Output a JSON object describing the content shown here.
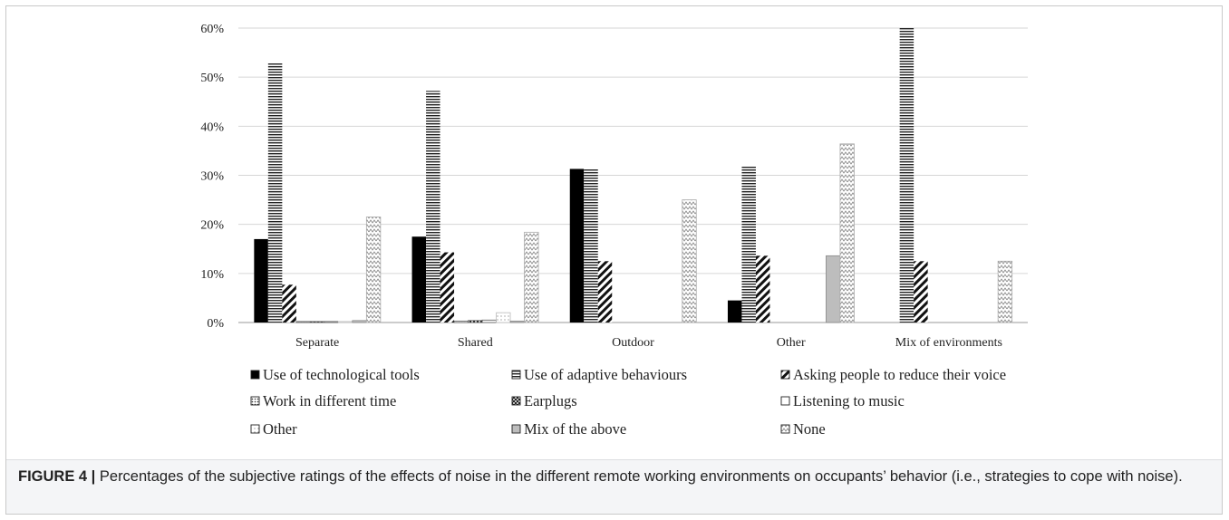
{
  "caption": {
    "label": "FIGURE 4 |",
    "text": " Percentages of the subjective ratings of the effects of noise in the different remote working environments on occupants’ behavior (i.e., strategies to cope with noise)."
  },
  "chart_data": {
    "type": "bar",
    "title": "",
    "xlabel": "",
    "ylabel": "",
    "ylim": [
      0,
      60
    ],
    "yticks": [
      0,
      10,
      20,
      30,
      40,
      50,
      60
    ],
    "ytick_labels": [
      "0%",
      "10%",
      "20%",
      "30%",
      "40%",
      "50%",
      "60%"
    ],
    "grid": true,
    "legend_position": "bottom",
    "categories": [
      "Separate",
      "Shared",
      "Outdoor",
      "Other",
      "Mix of environments"
    ],
    "series": [
      {
        "name": "Use of technological tools",
        "pattern": "solid-black",
        "values": [
          17,
          17.5,
          31.3,
          4.5,
          0
        ]
      },
      {
        "name": "Use of adaptive behaviours",
        "pattern": "horizontal-lines",
        "values": [
          52.8,
          47.2,
          31.3,
          31.8,
          60
        ]
      },
      {
        "name": "Asking people to reduce their voice",
        "pattern": "diagonal-stripes",
        "values": [
          7.7,
          14.3,
          12.5,
          13.6,
          12.5
        ]
      },
      {
        "name": "Work in different time",
        "pattern": "dotted",
        "values": [
          0.2,
          0.3,
          0,
          0,
          0
        ]
      },
      {
        "name": "Earplugs",
        "pattern": "cross-hatch",
        "values": [
          0.2,
          0.4,
          0,
          0,
          0
        ]
      },
      {
        "name": "Listening to music",
        "pattern": "outline",
        "values": [
          0.2,
          0.5,
          0,
          0,
          0
        ]
      },
      {
        "name": "Other",
        "pattern": "light-dotted",
        "values": [
          0.2,
          2,
          0,
          0,
          0
        ]
      },
      {
        "name": "Mix of the above",
        "pattern": "solid-gray",
        "values": [
          0.4,
          0.3,
          0,
          13.6,
          0
        ]
      },
      {
        "name": "None",
        "pattern": "zigzag",
        "values": [
          21.5,
          18.4,
          25,
          36.4,
          12.5
        ]
      }
    ]
  }
}
